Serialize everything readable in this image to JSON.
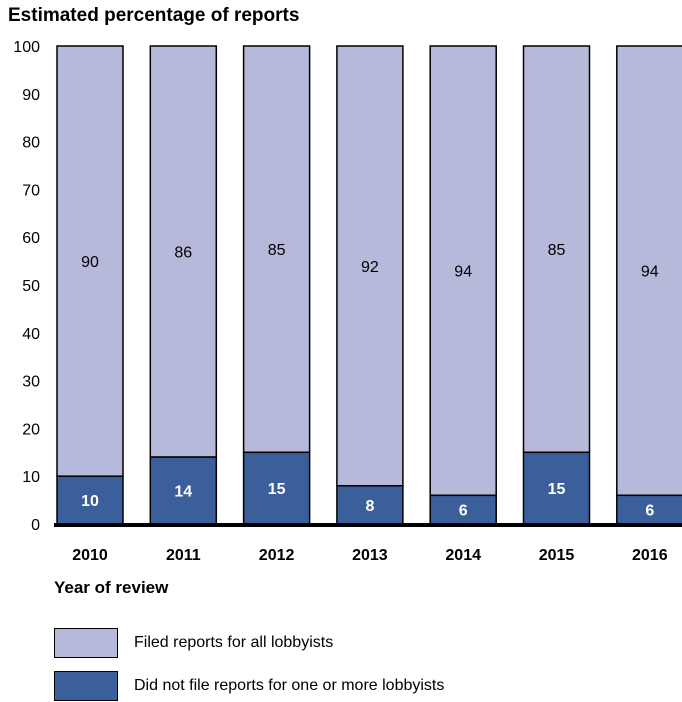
{
  "chart_data": {
    "type": "bar",
    "stacked": true,
    "title": "Estimated percentage of reports",
    "xlabel": "Year of review",
    "ylabel": "",
    "ylim": [
      0,
      100
    ],
    "yticks": [
      0,
      10,
      20,
      30,
      40,
      50,
      60,
      70,
      80,
      90,
      100
    ],
    "categories": [
      "2010",
      "2011",
      "2012",
      "2013",
      "2014",
      "2015",
      "2016"
    ],
    "series": [
      {
        "name": "Did not file reports for one or more lobbyists",
        "values": [
          10,
          14,
          15,
          8,
          6,
          15,
          6
        ],
        "color": "#3a5f9a"
      },
      {
        "name": "Filed reports for all lobbyists",
        "values": [
          90,
          86,
          85,
          92,
          94,
          85,
          94
        ],
        "color": "#b6b9da"
      }
    ],
    "legend_placement": "bottom-left",
    "grid": false
  },
  "legend": {
    "filed_label": "Filed reports for all lobbyists",
    "not_filed_label": "Did not file reports for one or more lobbyists"
  }
}
